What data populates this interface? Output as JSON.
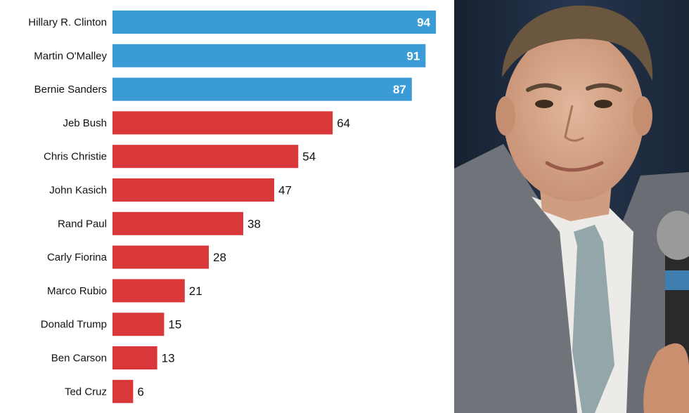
{
  "chart_data": {
    "type": "bar",
    "orientation": "horizontal",
    "categories": [
      "Hillary R. Clinton",
      "Martin O'Malley",
      "Bernie Sanders",
      "Jeb Bush",
      "Chris Christie",
      "John Kasich",
      "Rand Paul",
      "Carly Fiorina",
      "Marco Rubio",
      "Donald Trump",
      "Ben Carson",
      "Ted Cruz"
    ],
    "values": [
      94,
      91,
      87,
      64,
      54,
      47,
      38,
      28,
      21,
      15,
      13,
      6
    ],
    "xlim": [
      0,
      94
    ],
    "grid": false,
    "legend": "none",
    "colors": {
      "democrat": "#3a9bd6",
      "republican": "#d9383b"
    },
    "bar_colors": [
      "#3a9bd6",
      "#3a9bd6",
      "#3a9bd6",
      "#d9383b",
      "#d9383b",
      "#d9383b",
      "#d9383b",
      "#d9383b",
      "#d9383b",
      "#d9383b",
      "#d9383b",
      "#d9383b"
    ],
    "labels_inside": [
      true,
      true,
      true,
      false,
      false,
      false,
      false,
      false,
      false,
      false,
      false,
      false
    ]
  },
  "photo": {
    "subject": "portrait-photo",
    "colors": {
      "background": "#1e2b3f",
      "suit": "#6e7178",
      "shirt": "#eceae6",
      "tie": "#8fa3a6",
      "skin": "#d7a98c",
      "hair": "#6a5540"
    }
  }
}
